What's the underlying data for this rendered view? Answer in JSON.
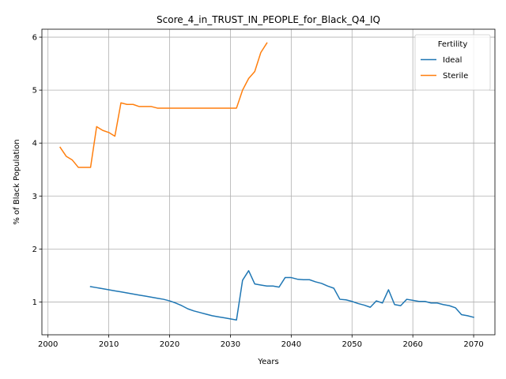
{
  "chart_data": {
    "type": "line",
    "title": "Score_4_in_TRUST_IN_PEOPLE_for_Black_Q4_IQ",
    "xlabel": "Years",
    "ylabel": "% of Black Population",
    "xlim": [
      1999,
      2073.5
    ],
    "ylim": [
      0.38,
      6.15
    ],
    "xticks": [
      2000,
      2010,
      2020,
      2030,
      2040,
      2050,
      2060,
      2070
    ],
    "yticks": [
      1,
      2,
      3,
      4,
      5,
      6
    ],
    "grid": true,
    "legend": {
      "title": "Fertility",
      "placement": "top-right"
    },
    "series": [
      {
        "name": "Ideal",
        "color": "#1f77b4",
        "x": [
          2007,
          2008,
          2009,
          2010,
          2011,
          2012,
          2013,
          2014,
          2015,
          2016,
          2017,
          2018,
          2019,
          2020,
          2021,
          2022,
          2023,
          2024,
          2025,
          2026,
          2027,
          2028,
          2029,
          2030,
          2031,
          2032,
          2033,
          2034,
          2035,
          2036,
          2037,
          2038,
          2039,
          2040,
          2041,
          2042,
          2043,
          2044,
          2045,
          2046,
          2047,
          2048,
          2049,
          2050,
          2051,
          2052,
          2053,
          2054,
          2055,
          2056,
          2057,
          2058,
          2059,
          2060,
          2061,
          2062,
          2063,
          2064,
          2065,
          2066,
          2067,
          2068,
          2069,
          2070
        ],
        "values": [
          1.29,
          1.27,
          1.25,
          1.23,
          1.21,
          1.19,
          1.17,
          1.15,
          1.13,
          1.11,
          1.09,
          1.07,
          1.05,
          1.02,
          0.98,
          0.93,
          0.87,
          0.83,
          0.8,
          0.77,
          0.74,
          0.72,
          0.7,
          0.68,
          0.66,
          1.41,
          1.59,
          1.34,
          1.32,
          1.3,
          1.3,
          1.28,
          1.46,
          1.46,
          1.43,
          1.42,
          1.42,
          1.38,
          1.35,
          1.3,
          1.26,
          1.05,
          1.04,
          1.01,
          0.97,
          0.94,
          0.9,
          1.02,
          0.98,
          1.23,
          0.95,
          0.93,
          1.05,
          1.03,
          1.01,
          1.01,
          0.98,
          0.98,
          0.95,
          0.93,
          0.89,
          0.76,
          0.74,
          0.71
        ]
      },
      {
        "name": "Sterile",
        "color": "#ff7f0e",
        "x": [
          2002,
          2003,
          2004,
          2005,
          2006,
          2007,
          2008,
          2009,
          2010,
          2011,
          2012,
          2013,
          2014,
          2015,
          2016,
          2017,
          2018,
          2019,
          2020,
          2021,
          2022,
          2023,
          2024,
          2025,
          2026,
          2027,
          2028,
          2029,
          2030,
          2031,
          2032,
          2033,
          2034,
          2035,
          2036
        ],
        "values": [
          3.92,
          3.75,
          3.68,
          3.54,
          3.54,
          3.54,
          4.31,
          4.24,
          4.2,
          4.13,
          4.76,
          4.73,
          4.73,
          4.69,
          4.69,
          4.69,
          4.66,
          4.66,
          4.66,
          4.66,
          4.66,
          4.66,
          4.66,
          4.66,
          4.66,
          4.66,
          4.66,
          4.66,
          4.66,
          4.66,
          5.0,
          5.22,
          5.35,
          5.71,
          5.89
        ]
      }
    ]
  }
}
